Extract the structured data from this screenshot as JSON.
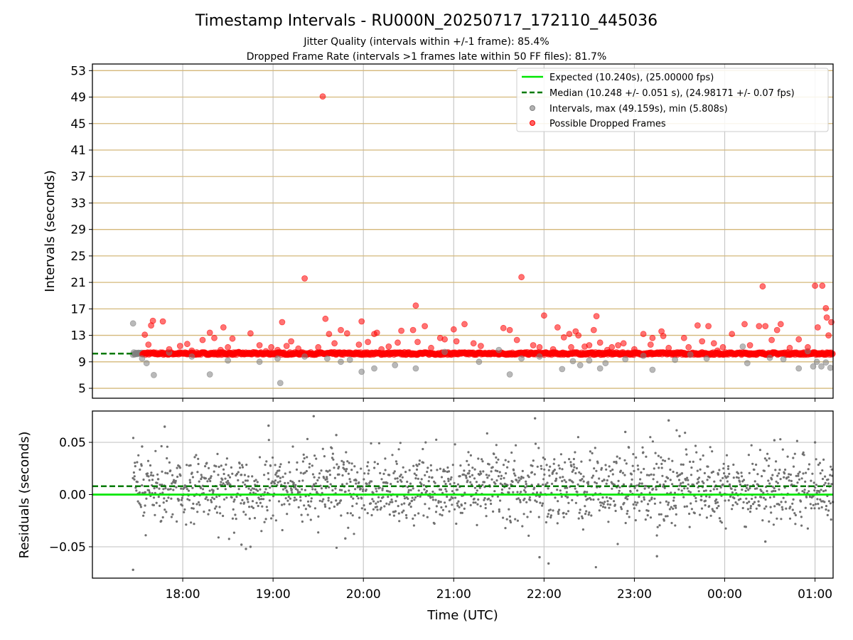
{
  "chart_data": [
    {
      "type": "scatter",
      "title": "Timestamp Intervals - RU000N_20250717_172110_445036",
      "subtitle_lines": [
        "Jitter Quality (intervals within +/-1 frame): 85.4%",
        "Dropped Frame Rate (intervals >1 frames late within 50 FF files): 81.7%"
      ],
      "xlabel": "",
      "ylabel": "Intervals (seconds)",
      "ylim": [
        3.5,
        54
      ],
      "yticks": [
        5,
        9,
        13,
        17,
        21,
        25,
        29,
        33,
        37,
        41,
        45,
        49,
        53
      ],
      "xlim_hours": [
        17.0,
        25.2
      ],
      "grid": true,
      "horizontal_tick_lines_color": "#d4b87a",
      "legend_placement": "upper-right",
      "legend": [
        {
          "label": "Expected (10.240s), (25.00000 fps)",
          "kind": "line",
          "color": "#00e600"
        },
        {
          "label": "Median (10.248 +/- 0.051 s), (24.98171 +/- 0.07 fps)",
          "kind": "dashed",
          "color": "#007a00"
        },
        {
          "label": "Intervals, max (49.159s), min (5.808s)",
          "kind": "marker",
          "color": "#808080"
        },
        {
          "label": "Possible Dropped Frames",
          "kind": "marker",
          "color": "#ff0000"
        }
      ],
      "expected_value": 10.24,
      "median_value": 10.248,
      "series": [
        {
          "name": "Intervals, max (49.159s), min (5.808s)",
          "color": "#808080",
          "points": [
            [
              17.45,
              14.8
            ],
            [
              17.55,
              9.5
            ],
            [
              17.6,
              8.8
            ],
            [
              17.68,
              7.0
            ],
            [
              17.85,
              10.4
            ],
            [
              18.1,
              9.8
            ],
            [
              18.3,
              7.1
            ],
            [
              18.5,
              9.2
            ],
            [
              18.85,
              9.0
            ],
            [
              19.05,
              9.5
            ],
            [
              19.08,
              5.8
            ],
            [
              19.35,
              9.8
            ],
            [
              19.6,
              9.5
            ],
            [
              19.75,
              9.0
            ],
            [
              19.85,
              9.3
            ],
            [
              19.98,
              7.5
            ],
            [
              20.12,
              8.0
            ],
            [
              20.35,
              8.5
            ],
            [
              20.58,
              8.0
            ],
            [
              20.9,
              10.5
            ],
            [
              21.28,
              9.0
            ],
            [
              21.5,
              10.8
            ],
            [
              21.62,
              7.1
            ],
            [
              21.75,
              9.5
            ],
            [
              21.95,
              9.8
            ],
            [
              22.2,
              7.9
            ],
            [
              22.32,
              9.1
            ],
            [
              22.4,
              8.5
            ],
            [
              22.5,
              9.2
            ],
            [
              22.62,
              8.0
            ],
            [
              22.68,
              8.8
            ],
            [
              22.9,
              9.4
            ],
            [
              23.1,
              9.9
            ],
            [
              23.2,
              7.8
            ],
            [
              23.45,
              9.3
            ],
            [
              23.62,
              10.1
            ],
            [
              23.8,
              9.5
            ],
            [
              24.2,
              11.3
            ],
            [
              24.25,
              8.8
            ],
            [
              24.5,
              9.6
            ],
            [
              24.65,
              9.4
            ],
            [
              24.82,
              8.0
            ],
            [
              24.92,
              10.6
            ],
            [
              24.98,
              8.3
            ],
            [
              25.02,
              9.0
            ],
            [
              25.07,
              8.3
            ],
            [
              25.12,
              8.9
            ],
            [
              25.17,
              8.1
            ]
          ]
        },
        {
          "name": "Possible Dropped Frames",
          "color": "#ff0000",
          "points": [
            [
              17.58,
              13.1
            ],
            [
              17.62,
              11.6
            ],
            [
              17.65,
              14.5
            ],
            [
              17.67,
              15.2
            ],
            [
              17.78,
              15.1
            ],
            [
              17.85,
              10.9
            ],
            [
              17.97,
              11.4
            ],
            [
              18.05,
              11.7
            ],
            [
              18.1,
              10.7
            ],
            [
              18.22,
              12.3
            ],
            [
              18.3,
              13.4
            ],
            [
              18.35,
              12.6
            ],
            [
              18.42,
              10.8
            ],
            [
              18.45,
              14.2
            ],
            [
              18.5,
              11.2
            ],
            [
              18.55,
              12.5
            ],
            [
              18.62,
              10.5
            ],
            [
              18.75,
              13.3
            ],
            [
              18.85,
              11.5
            ],
            [
              18.92,
              10.6
            ],
            [
              18.98,
              11.2
            ],
            [
              19.05,
              10.8
            ],
            [
              19.1,
              15.0
            ],
            [
              19.15,
              11.4
            ],
            [
              19.2,
              12.1
            ],
            [
              19.28,
              11.0
            ],
            [
              19.35,
              21.6
            ],
            [
              19.5,
              11.2
            ],
            [
              19.55,
              49.1
            ],
            [
              19.58,
              15.5
            ],
            [
              19.62,
              13.2
            ],
            [
              19.68,
              11.8
            ],
            [
              19.75,
              13.8
            ],
            [
              19.82,
              13.3
            ],
            [
              19.95,
              11.6
            ],
            [
              19.98,
              15.1
            ],
            [
              20.05,
              12.0
            ],
            [
              20.12,
              13.2
            ],
            [
              20.15,
              13.4
            ],
            [
              20.2,
              10.9
            ],
            [
              20.28,
              11.3
            ],
            [
              20.38,
              11.9
            ],
            [
              20.42,
              13.7
            ],
            [
              20.55,
              13.8
            ],
            [
              20.58,
              17.5
            ],
            [
              20.6,
              12.0
            ],
            [
              20.68,
              14.4
            ],
            [
              20.75,
              11.1
            ],
            [
              20.85,
              12.6
            ],
            [
              20.9,
              12.4
            ],
            [
              21.0,
              13.9
            ],
            [
              21.03,
              12.1
            ],
            [
              21.12,
              14.7
            ],
            [
              21.22,
              11.8
            ],
            [
              21.3,
              11.4
            ],
            [
              21.55,
              14.1
            ],
            [
              21.62,
              13.8
            ],
            [
              21.7,
              12.3
            ],
            [
              21.75,
              21.8
            ],
            [
              21.88,
              11.5
            ],
            [
              21.95,
              11.2
            ],
            [
              22.0,
              16.0
            ],
            [
              22.1,
              10.9
            ],
            [
              22.15,
              14.2
            ],
            [
              22.22,
              12.7
            ],
            [
              22.28,
              13.2
            ],
            [
              22.3,
              11.2
            ],
            [
              22.35,
              13.6
            ],
            [
              22.38,
              13.0
            ],
            [
              22.45,
              11.3
            ],
            [
              22.5,
              11.5
            ],
            [
              22.55,
              13.8
            ],
            [
              22.58,
              15.9
            ],
            [
              22.62,
              11.9
            ],
            [
              22.7,
              10.8
            ],
            [
              22.75,
              11.2
            ],
            [
              22.82,
              11.5
            ],
            [
              22.88,
              11.8
            ],
            [
              23.0,
              10.9
            ],
            [
              23.1,
              13.2
            ],
            [
              23.18,
              11.6
            ],
            [
              23.2,
              12.6
            ],
            [
              23.3,
              13.6
            ],
            [
              23.32,
              12.9
            ],
            [
              23.38,
              11.1
            ],
            [
              23.55,
              12.6
            ],
            [
              23.6,
              11.2
            ],
            [
              23.7,
              14.5
            ],
            [
              23.75,
              12.1
            ],
            [
              23.82,
              14.4
            ],
            [
              23.88,
              11.8
            ],
            [
              23.92,
              10.7
            ],
            [
              23.98,
              11.2
            ],
            [
              24.08,
              13.2
            ],
            [
              24.22,
              14.7
            ],
            [
              24.28,
              11.5
            ],
            [
              24.38,
              14.4
            ],
            [
              24.42,
              20.4
            ],
            [
              24.45,
              14.4
            ],
            [
              24.52,
              12.3
            ],
            [
              24.58,
              13.8
            ],
            [
              24.62,
              14.7
            ],
            [
              24.72,
              11.1
            ],
            [
              24.82,
              12.4
            ],
            [
              24.92,
              11.2
            ],
            [
              25.0,
              20.5
            ],
            [
              25.03,
              14.2
            ],
            [
              25.08,
              20.5
            ],
            [
              25.12,
              17.1
            ],
            [
              25.13,
              15.7
            ],
            [
              25.15,
              13.0
            ],
            [
              25.18,
              15.0
            ]
          ]
        }
      ]
    },
    {
      "type": "scatter",
      "title": "",
      "xlabel": "Time (UTC)",
      "ylabel": "Residuals (seconds)",
      "ylim": [
        -0.08,
        0.08
      ],
      "yticks": [
        -0.05,
        0.0,
        0.05
      ],
      "ytick_labels": [
        "−0.05",
        "0.00",
        "0.05"
      ],
      "xticks_hours": [
        18,
        19,
        20,
        21,
        22,
        23,
        24,
        25
      ],
      "xtick_labels": [
        "18:00",
        "19:00",
        "20:00",
        "21:00",
        "22:00",
        "23:00",
        "00:00",
        "01:00"
      ],
      "xlim_hours": [
        17.0,
        25.2
      ],
      "grid": true,
      "expected_residual": 0.0,
      "median_residual": 0.008,
      "series": [
        {
          "name": "",
          "color": "#707070",
          "generation": {
            "x_start": 17.45,
            "x_end": 25.2,
            "count": 1800,
            "center": 0.006,
            "spread": 0.017
          }
        }
      ],
      "outliers": [
        [
          17.45,
          -0.072
        ],
        [
          19.45,
          0.075
        ],
        [
          18.7,
          -0.052
        ],
        [
          18.65,
          -0.048
        ],
        [
          18.75,
          -0.05
        ],
        [
          19.8,
          -0.042
        ],
        [
          21.9,
          0.073
        ],
        [
          21.95,
          -0.06
        ],
        [
          22.05,
          -0.066
        ],
        [
          23.25,
          -0.059
        ],
        [
          23.38,
          0.071
        ],
        [
          23.5,
          0.056
        ],
        [
          17.8,
          0.065
        ],
        [
          18.95,
          0.066
        ],
        [
          19.7,
          0.057
        ],
        [
          22.9,
          0.06
        ],
        [
          24.45,
          -0.045
        ],
        [
          24.55,
          0.052
        ],
        [
          25.0,
          0.05
        ],
        [
          17.55,
          0.046
        ]
      ]
    }
  ]
}
